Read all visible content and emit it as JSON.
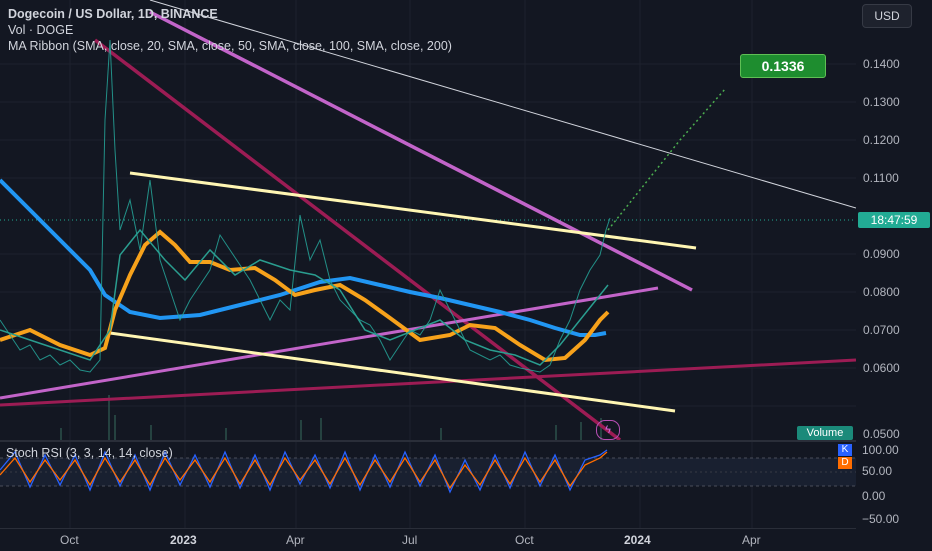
{
  "legend": {
    "title": "Dogecoin / US Dollar, 1D, BINANCE",
    "vol": "Vol · DOGE",
    "ma": "MA Ribbon (SMA, close, 20, SMA, close, 50, SMA, close, 100, SMA, close, 200)"
  },
  "stoch_label": "Stoch RSI (3, 3, 14, 14, close)",
  "currency_button": "USD",
  "price_axis": [
    "0.1400",
    "0.1300",
    "0.1200",
    "0.1100",
    "0.0900",
    "0.0800",
    "0.0700",
    "0.0600",
    "0.0500"
  ],
  "price_tag": "18:47:59",
  "target_label": "0.1336",
  "volume_tag": "Volume",
  "rsi_axis": [
    "100.00",
    "50.00",
    "0.00",
    "−50.00"
  ],
  "kd": {
    "k": "K",
    "d": "D"
  },
  "time_axis": [
    {
      "label": "Oct",
      "bold": false
    },
    {
      "label": "2023",
      "bold": true
    },
    {
      "label": "Apr",
      "bold": false
    },
    {
      "label": "Jul",
      "bold": false
    },
    {
      "label": "Oct",
      "bold": false
    },
    {
      "label": "2024",
      "bold": true
    },
    {
      "label": "Apr",
      "bold": false
    }
  ],
  "colors": {
    "background": "#131722",
    "ma20": "#2a9d8f",
    "ma50": "#f7a21b",
    "ma100": "#2196f3",
    "trend_pink": "#b84fb5",
    "trend_maroon": "#9c1c54",
    "trend_cream": "#fff6b3",
    "target": "#1e8d2f"
  },
  "icons": {
    "flash": "flash-icon"
  }
}
